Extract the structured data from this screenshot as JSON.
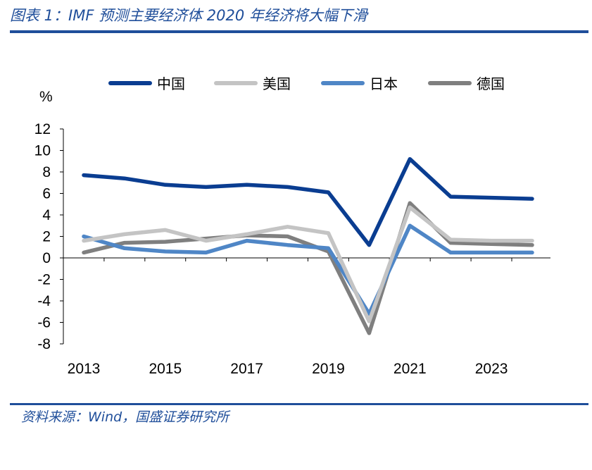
{
  "figure": {
    "title": "图表 1：IMF 预测主要经济体 2020 年经济将大幅下滑",
    "source": "资料来源：Wind，国盛证券研究所"
  },
  "chart_data": {
    "type": "line",
    "title": "",
    "xlabel": "",
    "ylabel": "%",
    "ylim": [
      -8,
      12
    ],
    "yticks": [
      12,
      10,
      8,
      6,
      4,
      2,
      0,
      -2,
      -4,
      -6,
      -8
    ],
    "xlim": [
      2013,
      2024
    ],
    "xticks": [
      2013,
      2015,
      2017,
      2019,
      2021,
      2023
    ],
    "x": [
      2013,
      2014,
      2015,
      2016,
      2017,
      2018,
      2019,
      2020,
      2021,
      2022,
      2023,
      2024
    ],
    "legend_position": "top",
    "grid": false,
    "series": [
      {
        "name": "中国",
        "color": "#0a3d91",
        "values": [
          7.7,
          7.4,
          6.8,
          6.6,
          6.8,
          6.6,
          6.1,
          1.2,
          9.2,
          5.7,
          5.6,
          5.5
        ]
      },
      {
        "name": "美国",
        "color": "#c4c4c4",
        "values": [
          1.6,
          2.2,
          2.6,
          1.6,
          2.2,
          2.9,
          2.3,
          -5.9,
          4.7,
          1.7,
          1.6,
          1.6
        ]
      },
      {
        "name": "日本",
        "color": "#4f86c6",
        "values": [
          2.0,
          0.9,
          0.6,
          0.5,
          1.6,
          1.2,
          0.9,
          -5.2,
          3.0,
          0.5,
          0.5,
          0.5
        ]
      },
      {
        "name": "德国",
        "color": "#7f7f7f",
        "values": [
          0.5,
          1.4,
          1.5,
          1.8,
          2.1,
          2.0,
          0.6,
          -7.0,
          5.1,
          1.4,
          1.3,
          1.2
        ]
      }
    ]
  }
}
